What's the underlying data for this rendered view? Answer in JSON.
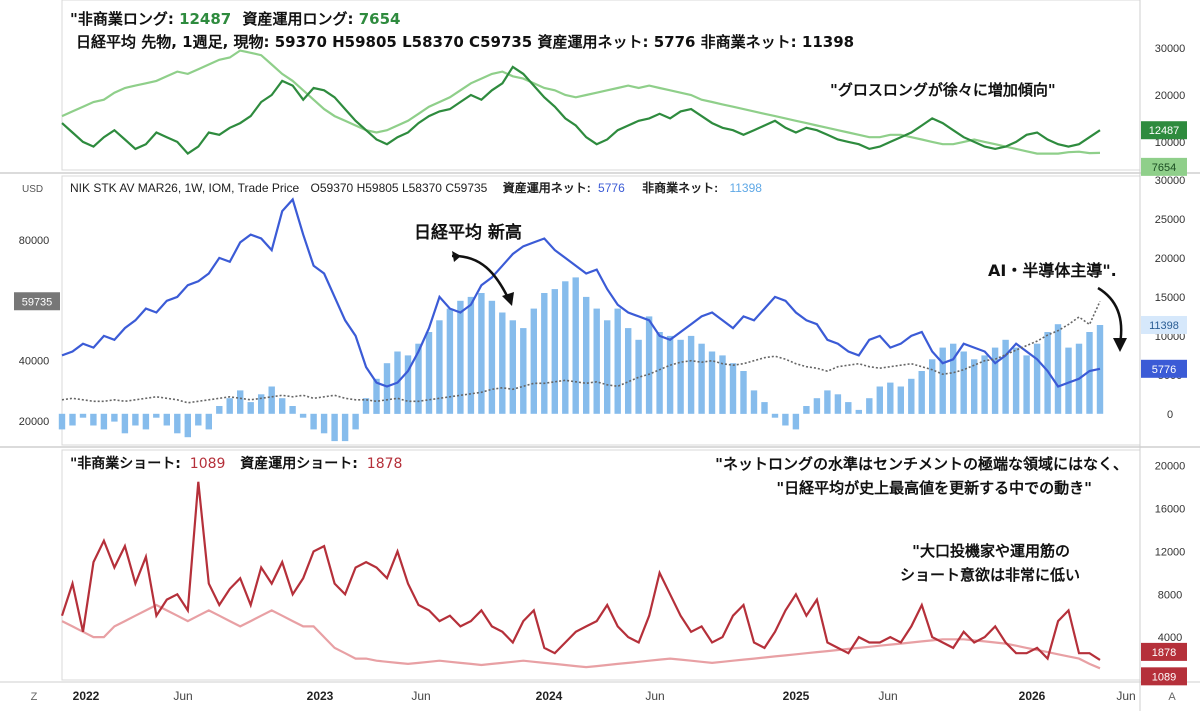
{
  "chart_data": [
    {
      "type": "line",
      "header_line1": {
        "prefix1": "\"非商業ロング:",
        "value1": "12487",
        "prefix2": "資産運用ロング:",
        "value2": "7654"
      },
      "header_line2": "日経平均 先物, 1週足, 現物: 59370 H59805 L58370 C59735   資産運用ネット: 5776   非商業ネット: 11398",
      "annotation": "\"グロスロングが徐々に増加傾向\"",
      "yaxis_ticks": [
        "30000",
        "20000",
        "10000"
      ],
      "ylim": [
        4000,
        36000
      ],
      "series": [
        {
          "color": "#2e8b3e",
          "last_label": "12487",
          "values": [
            14000,
            12000,
            10000,
            9000,
            11000,
            12500,
            10500,
            8500,
            9500,
            12000,
            11000,
            10000,
            7500,
            9000,
            12000,
            11500,
            13000,
            14000,
            15500,
            18500,
            20000,
            23000,
            22000,
            19000,
            21500,
            21000,
            19500,
            17000,
            14500,
            12500,
            10500,
            9500,
            11000,
            12000,
            14000,
            15500,
            16500,
            17000,
            18500,
            20000,
            19000,
            21000,
            22500,
            26000,
            24500,
            22000,
            19500,
            17500,
            15000,
            13500,
            11000,
            9500,
            10500,
            12500,
            13500,
            14500,
            15000,
            16000,
            15000,
            16500,
            17000,
            15500,
            14000,
            13000,
            12500,
            11500,
            12500,
            13500,
            14500,
            13000,
            12000,
            13000,
            12500,
            11500,
            10500,
            10000,
            9500,
            8500,
            9000,
            10000,
            11000,
            12000,
            13500,
            15000,
            14000,
            12500,
            11000,
            10000,
            9000,
            8500,
            9000,
            10000,
            11500,
            12000,
            10500,
            9500,
            9000,
            9500,
            11000,
            12487
          ]
        },
        {
          "color": "#8fcf8a",
          "last_label": "7654",
          "values": [
            15500,
            16500,
            17500,
            18500,
            19000,
            20500,
            21500,
            22000,
            22500,
            23000,
            24000,
            25000,
            24500,
            25500,
            26500,
            27500,
            28000,
            29500,
            29000,
            28500,
            26500,
            24500,
            23000,
            21000,
            19000,
            17000,
            15500,
            14500,
            13500,
            12500,
            12000,
            12500,
            13500,
            14500,
            16000,
            17500,
            18500,
            19500,
            21000,
            22500,
            23500,
            24500,
            25000,
            24000,
            23500,
            22500,
            21500,
            21000,
            20000,
            19500,
            20000,
            20500,
            21000,
            21500,
            22000,
            21500,
            22000,
            21500,
            21000,
            20500,
            20000,
            19000,
            18500,
            18000,
            17500,
            17000,
            16500,
            16000,
            15500,
            15000,
            14500,
            14000,
            13500,
            13000,
            12500,
            12000,
            11500,
            11000,
            11000,
            11500,
            11500,
            11000,
            10500,
            10000,
            9500,
            9500,
            10000,
            10500,
            10000,
            9500,
            9000,
            8500,
            8000,
            7500,
            7500,
            7500,
            7800,
            7900,
            7600,
            7654
          ]
        }
      ]
    },
    {
      "type": "bar",
      "legend_text": {
        "symbol": "NIK STK AV MAR26, 1W, IOM, Trade Price",
        "ohlc": "O59370  H59805  L58370  C59735",
        "net_am_label": "資産運用ネット:",
        "net_am_value": "5776",
        "net_nc_label": "非商業ネット:",
        "net_nc_value": "11398"
      },
      "currency_label": "USD",
      "annotation_high": "日経平均 新高",
      "annotation_ai": "AI・半導体主導\".",
      "price_axis_ticks": [
        "80000",
        "40000",
        "20000"
      ],
      "price_ylim": [
        12000,
        100000
      ],
      "price_badge": "59735",
      "net_axis_ticks": [
        "30000",
        "25000",
        "20000",
        "15000",
        "10000",
        "5000",
        "0"
      ],
      "net_ylim": [
        -4000,
        30000
      ],
      "net_am_badge": "5776",
      "net_nc_badge": "11398",
      "nikkei_price": [
        27000,
        27500,
        27000,
        26500,
        26500,
        27000,
        26500,
        27000,
        27500,
        28000,
        27500,
        27000,
        26000,
        26500,
        27000,
        27500,
        28000,
        27500,
        27000,
        27500,
        28000,
        28500,
        28000,
        28500,
        27500,
        28000,
        28500,
        27500,
        27000,
        27000,
        26500,
        27000,
        27500,
        26500,
        26500,
        27000,
        27500,
        28000,
        28500,
        29000,
        29500,
        30500,
        31000,
        30500,
        31500,
        32500,
        32500,
        33000,
        33500,
        33000,
        32500,
        33000,
        32000,
        31500,
        33000,
        34500,
        35500,
        37000,
        38500,
        39500,
        40000,
        39500,
        40000,
        39000,
        38500,
        39000,
        40000,
        41000,
        41500,
        40500,
        39000,
        38000,
        37500,
        36500,
        38000,
        38500,
        39000,
        38000,
        37500,
        38000,
        38500,
        39000,
        38000,
        37000,
        35500,
        36000,
        37000,
        38500,
        40000,
        40500,
        42000,
        43500,
        45000,
        46500,
        48500,
        50000,
        52000,
        54500,
        52000,
        59735
      ],
      "net_am": [
        7500,
        8000,
        9000,
        8500,
        10000,
        9500,
        11000,
        12000,
        13500,
        13000,
        14500,
        15000,
        16500,
        17000,
        18000,
        20000,
        19500,
        22000,
        23000,
        22500,
        21000,
        26000,
        27500,
        23000,
        19000,
        18000,
        15000,
        12000,
        10000,
        6000,
        4000,
        3500,
        4000,
        5500,
        8000,
        11000,
        15000,
        13500,
        13000,
        14000,
        16500,
        17500,
        19000,
        20500,
        21500,
        22000,
        22500,
        21000,
        20000,
        19000,
        18000,
        18500,
        16000,
        14000,
        13000,
        12500,
        12000,
        10000,
        9500,
        10500,
        11500,
        12500,
        13000,
        12000,
        11000,
        12500,
        12000,
        13500,
        15000,
        14500,
        13000,
        12000,
        11500,
        9500,
        9000,
        8000,
        7500,
        9500,
        10000,
        8500,
        9000,
        10000,
        10500,
        8000,
        6500,
        7000,
        9000,
        8500,
        8000,
        6500,
        7500,
        9000,
        8000,
        7000,
        5500,
        3500,
        4000,
        4500,
        5500,
        5776
      ],
      "net_nc": [
        -2000,
        -1500,
        -500,
        -1500,
        -2000,
        -1000,
        -2500,
        -1500,
        -2000,
        -500,
        -1500,
        -2500,
        -3000,
        -1500,
        -2000,
        1000,
        2000,
        3000,
        1500,
        2500,
        3500,
        2000,
        1000,
        -500,
        -2000,
        -2500,
        -3500,
        -3500,
        -2000,
        2000,
        4500,
        6500,
        8000,
        7500,
        9000,
        10500,
        12000,
        13500,
        14500,
        15000,
        15500,
        14500,
        13000,
        12000,
        11000,
        13500,
        15500,
        16000,
        17000,
        17500,
        15000,
        13500,
        12000,
        13500,
        11000,
        9500,
        12500,
        10500,
        10000,
        9500,
        10000,
        9000,
        8000,
        7500,
        6500,
        5500,
        3000,
        1500,
        -500,
        -1500,
        -2000,
        1000,
        2000,
        3000,
        2500,
        1500,
        500,
        2000,
        3500,
        4000,
        3500,
        4500,
        5500,
        7000,
        8500,
        9000,
        8000,
        7000,
        7500,
        8500,
        9500,
        8500,
        7500,
        9000,
        10500,
        11500,
        8500,
        9000,
        10500,
        11398
      ]
    },
    {
      "type": "line",
      "legend": {
        "label1": "\"非商業ショート:",
        "value1": "1089",
        "label2": "資産運用ショート:",
        "value2": "1878"
      },
      "annotation1_line1": "\"ネットロングの水準はセンチメントの極端な領域にはなく、",
      "annotation1_line2": "\"日経平均が史上最高値を更新する中での動き\"",
      "annotation2_line1": "\"大口投機家や運用筋の",
      "annotation2_line2": "ショート意欲は非常に低い",
      "yaxis_ticks": [
        "20000",
        "16000",
        "12000",
        "8000",
        "4000"
      ],
      "ylim": [
        0,
        21000
      ],
      "series": [
        {
          "color": "#b5303a",
          "last_label": "1878",
          "values": [
            6000,
            9000,
            4500,
            11000,
            13000,
            10500,
            12500,
            9000,
            11500,
            6000,
            7500,
            8000,
            6500,
            18500,
            9000,
            7000,
            8500,
            9500,
            7000,
            10500,
            9000,
            11000,
            8000,
            9500,
            12000,
            12500,
            9000,
            8000,
            10500,
            11000,
            10500,
            9500,
            12000,
            9000,
            7000,
            6500,
            5500,
            6000,
            5000,
            5500,
            6500,
            5000,
            4500,
            3500,
            5500,
            6500,
            3000,
            2500,
            3500,
            4500,
            5000,
            5500,
            7000,
            5000,
            4000,
            3500,
            6000,
            10000,
            8000,
            6000,
            4500,
            5000,
            3500,
            4000,
            6000,
            7000,
            3500,
            3000,
            4500,
            6500,
            8000,
            6000,
            7500,
            3500,
            3000,
            2500,
            4000,
            3500,
            3500,
            4000,
            3500,
            5000,
            7000,
            4000,
            3500,
            3000,
            4500,
            3500,
            4000,
            5000,
            3500,
            2500,
            2500,
            3000,
            2000,
            5500,
            6500,
            2500,
            2500,
            1878
          ]
        },
        {
          "color": "#e8a0a4",
          "last_label": "1089",
          "values": [
            5500,
            5000,
            4500,
            4000,
            4000,
            5000,
            5500,
            6000,
            6500,
            7000,
            6500,
            6000,
            5500,
            6000,
            6500,
            6000,
            5500,
            5000,
            5500,
            6000,
            6500,
            6000,
            5500,
            5000,
            5000,
            4000,
            3000,
            2500,
            2000,
            2000,
            1800,
            1700,
            1600,
            1500,
            1600,
            1700,
            1800,
            1700,
            1600,
            1500,
            1400,
            1500,
            1600,
            1700,
            1800,
            1700,
            1600,
            1500,
            1400,
            1300,
            1200,
            1300,
            1400,
            1500,
            1600,
            1700,
            1800,
            1900,
            2000,
            1900,
            1800,
            1700,
            1600,
            1700,
            1800,
            1900,
            2000,
            2100,
            2200,
            2300,
            2400,
            2500,
            2600,
            2700,
            2800,
            2900,
            3000,
            3100,
            3200,
            3300,
            3400,
            3500,
            3600,
            3700,
            3800,
            3800,
            3800,
            3700,
            3600,
            3500,
            3400,
            3200,
            3000,
            2800,
            2600,
            2400,
            2200,
            2000,
            1500,
            1089
          ]
        }
      ],
      "xaxis_ticks": [
        "2022",
        "Jun",
        "2023",
        "Jun",
        "2024",
        "Jun",
        "2025",
        "Jun",
        "2026",
        "Jun"
      ],
      "left_corner": "Z",
      "right_corner": "A"
    }
  ]
}
